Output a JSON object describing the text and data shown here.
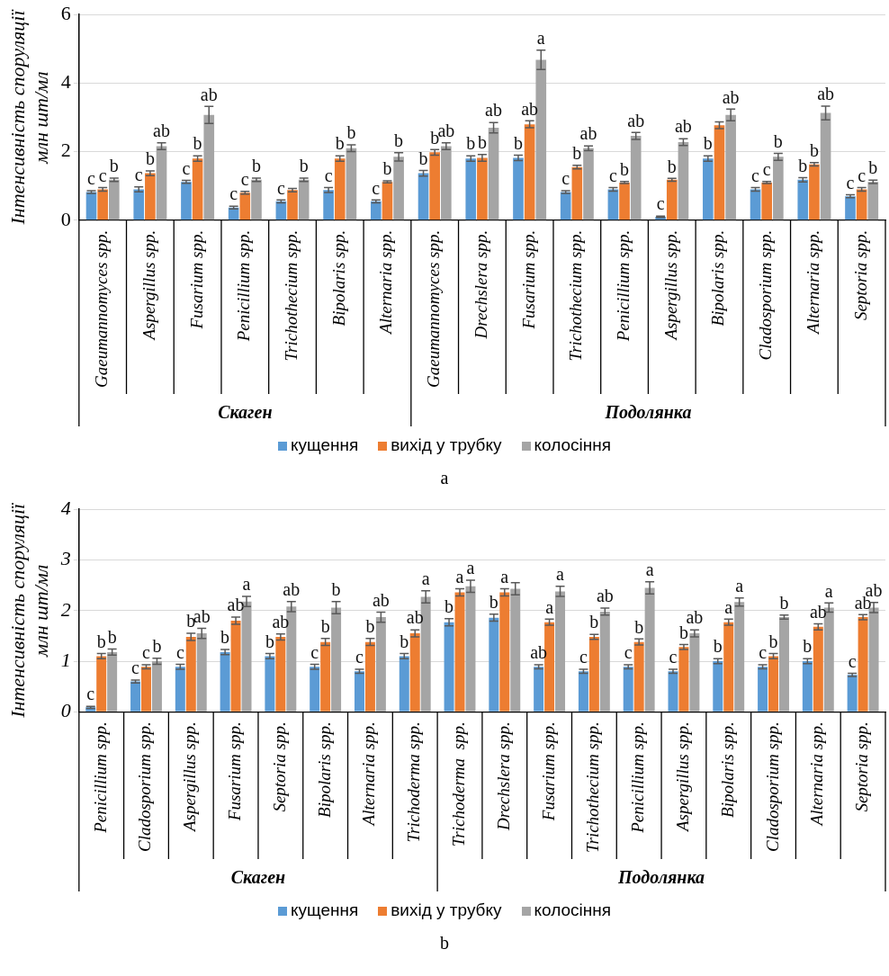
{
  "chart_data": [
    {
      "type": "bar",
      "title": "a",
      "ylabel": "Інтенсивність споруляції\nмлн шт/мл",
      "categories": [
        "Gaeumannomyces spp.",
        "Aspergillus spp.",
        "Fusarium spp.",
        "Penicillium spp.",
        "Trichothecium spp.",
        "Bipolaris spp.",
        "Alternaria spp.",
        "Gaeumannomyces spp.",
        "Drechslera spp.",
        "Fusarium spp.",
        "Trichothecium spp.",
        "Penicillium spp.",
        "Aspergillus spp.",
        "Bipolaris spp.",
        "Cladosporium spp.",
        "Alternaria spp.",
        "Septoria spp."
      ],
      "series": [
        {
          "name": "кущення",
          "color": "#5b9bd5",
          "values": [
            0.82,
            0.9,
            1.12,
            0.37,
            0.55,
            0.88,
            0.55,
            1.37,
            1.8,
            1.82,
            0.82,
            0.9,
            0.1,
            1.8,
            0.9,
            1.18,
            0.7
          ],
          "errors": [
            0.04,
            0.07,
            0.04,
            0.04,
            0.04,
            0.07,
            0.04,
            0.08,
            0.08,
            0.08,
            0.04,
            0.05,
            0.02,
            0.08,
            0.05,
            0.06,
            0.04
          ],
          "value_labels": [
            "c",
            "c",
            "c",
            "c",
            "c",
            "c",
            "c",
            "b",
            "b",
            "b",
            "c",
            "c",
            "c",
            "b",
            "c",
            "b",
            "c"
          ]
        },
        {
          "name": "вихід  у трубку",
          "color": "#ed7d31",
          "values": [
            0.9,
            1.37,
            1.8,
            0.8,
            0.88,
            1.8,
            1.12,
            1.98,
            1.82,
            2.8,
            1.55,
            1.1,
            1.18,
            2.77,
            1.1,
            1.63,
            0.9
          ],
          "errors": [
            0.05,
            0.07,
            0.08,
            0.04,
            0.05,
            0.08,
            0.03,
            0.08,
            0.1,
            0.1,
            0.05,
            0.03,
            0.04,
            0.1,
            0.03,
            0.05,
            0.05
          ],
          "value_labels": [
            "c",
            "b",
            "b",
            "c",
            null,
            "b",
            "b",
            "b",
            "b",
            "ab",
            "b",
            "b",
            "b",
            null,
            "c",
            "b",
            "c"
          ]
        },
        {
          "name": "колосіння",
          "color": "#a5a5a5",
          "values": [
            1.18,
            2.16,
            3.07,
            1.18,
            1.18,
            2.1,
            1.85,
            2.16,
            2.7,
            4.68,
            2.1,
            2.46,
            2.28,
            3.07,
            1.85,
            3.13,
            1.12
          ],
          "errors": [
            0.05,
            0.1,
            0.25,
            0.05,
            0.05,
            0.1,
            0.12,
            0.1,
            0.15,
            0.28,
            0.07,
            0.1,
            0.1,
            0.17,
            0.1,
            0.2,
            0.05
          ],
          "value_labels": [
            "b",
            "ab",
            "ab",
            "b",
            "b",
            "b",
            "b",
            "ab",
            "ab",
            "a",
            "ab",
            "ab",
            "ab",
            "ab",
            "b",
            "ab",
            "b"
          ]
        }
      ],
      "ylim": [
        0,
        6
      ],
      "yticks": [
        0,
        2,
        4,
        6
      ],
      "grid": "y",
      "legend": "bottom",
      "annotations": [
        "Скаген",
        "Подолянка"
      ]
    },
    {
      "type": "bar",
      "title": "b",
      "ylabel": "Інтенсивність споруляції\nмлн шт/мл",
      "categories": [
        "Penicillium spp.",
        "Cladosporium spp.",
        "Aspergillus spp.",
        "Fusarium spp.",
        "Septoria spp.",
        "Bipolaris spp.",
        "Alternaria spp.",
        "Trichoderma spp.",
        "Trichoderma  spp.",
        "Drechslera spp.",
        "Fusarium spp.",
        "Trichothecium spp.",
        "Penicillium spp.",
        "Aspergillus spp.",
        "Bipolaris spp.",
        "Cladosporium spp.",
        "Alternaria spp.",
        "Septoria spp."
      ],
      "series": [
        {
          "name": "кущення",
          "color": "#5b9bd5",
          "values": [
            0.09,
            0.6,
            0.89,
            1.18,
            1.1,
            0.89,
            0.8,
            1.1,
            1.77,
            1.86,
            0.89,
            0.8,
            0.89,
            0.8,
            1.0,
            0.89,
            1.0,
            0.73
          ],
          "errors": [
            0.02,
            0.03,
            0.05,
            0.05,
            0.05,
            0.05,
            0.04,
            0.05,
            0.07,
            0.07,
            0.04,
            0.04,
            0.04,
            0.04,
            0.05,
            0.04,
            0.05,
            0.03
          ],
          "value_labels": [
            "c",
            "c",
            "c",
            "b",
            "b",
            "c",
            "c",
            "b",
            "b",
            "b",
            "ab",
            "c",
            "c",
            "c",
            "b",
            "c",
            "b",
            "c"
          ]
        },
        {
          "name": "вихід  у трубку",
          "color": "#ed7d31",
          "values": [
            1.1,
            0.89,
            1.48,
            1.8,
            1.48,
            1.38,
            1.38,
            1.55,
            2.36,
            2.36,
            1.77,
            1.48,
            1.38,
            1.28,
            1.77,
            1.1,
            1.68,
            1.87
          ],
          "errors": [
            0.05,
            0.04,
            0.07,
            0.07,
            0.06,
            0.07,
            0.07,
            0.07,
            0.07,
            0.07,
            0.06,
            0.05,
            0.06,
            0.05,
            0.06,
            0.05,
            0.06,
            0.05
          ],
          "value_labels": [
            "b",
            "c",
            "b",
            "ab",
            "ab",
            "b",
            "b",
            "ab",
            "a",
            "a",
            "a",
            "b",
            "b",
            "b",
            "a",
            "b",
            "ab",
            "ab"
          ]
        },
        {
          "name": "колосіння",
          "color": "#a5a5a5",
          "values": [
            1.18,
            1.0,
            1.55,
            2.18,
            2.08,
            2.06,
            1.87,
            2.27,
            2.48,
            2.43,
            2.38,
            1.98,
            2.45,
            1.55,
            2.17,
            1.87,
            2.06,
            2.06
          ],
          "errors": [
            0.06,
            0.06,
            0.1,
            0.1,
            0.1,
            0.12,
            0.1,
            0.12,
            0.12,
            0.12,
            0.1,
            0.07,
            0.12,
            0.07,
            0.08,
            0.04,
            0.09,
            0.1
          ],
          "value_labels": [
            "b",
            "b",
            "ab",
            "a",
            "ab",
            "b",
            "ab",
            "a",
            "a",
            null,
            "a",
            "ab",
            "a",
            "ab",
            "a",
            "b",
            "a",
            "ab"
          ]
        }
      ],
      "ylim": [
        0,
        4
      ],
      "yticks": [
        0,
        1,
        2,
        3,
        4
      ],
      "grid": "y",
      "legend": "bottom",
      "annotations": [
        "Скаген",
        "Подолянка"
      ]
    }
  ]
}
